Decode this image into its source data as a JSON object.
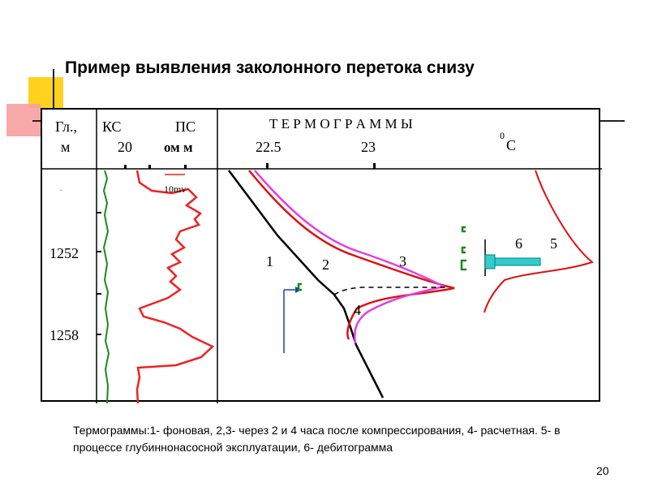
{
  "title": "Пример выявления заколонного перетока снизу",
  "header": {
    "depth_label_1": "Гл.,",
    "depth_label_2": "м",
    "ks_label": "КС",
    "ks_value": "20",
    "ps_label": "ПС",
    "ps_unit": "ом м",
    "thermo_title": "Т Е Р М О Г Р А М М Ы",
    "temp_225": "22.5",
    "temp_23": "23",
    "deg_superscript": "0",
    "deg_unit": "С"
  },
  "scale_label": "10mv",
  "depths": [
    "1252",
    "1258"
  ],
  "curve_labels": {
    "c1": "1",
    "c2": "2",
    "c3": "3",
    "c4": "4",
    "c5": "5",
    "c6": "6"
  },
  "colors": {
    "ks_curve": "#1a8a1a",
    "ps_curve": "#ee2222",
    "thermo_1": "#000000",
    "thermo_2": "#dd1111",
    "thermo_3": "#e040e0",
    "thermo_5": "#dd1111",
    "debit": "#33cccc",
    "arrow": "#1a3fbf",
    "perforation": "#1a8a1a"
  },
  "caption": "Термограммы:1- фоновая, 2,3- через 2 и 4 часа после компрессирования, 4- расчетная. 5- в процессе глубиннонасосной эксплуатации, 6- дебитограмма",
  "page_number": "20"
}
